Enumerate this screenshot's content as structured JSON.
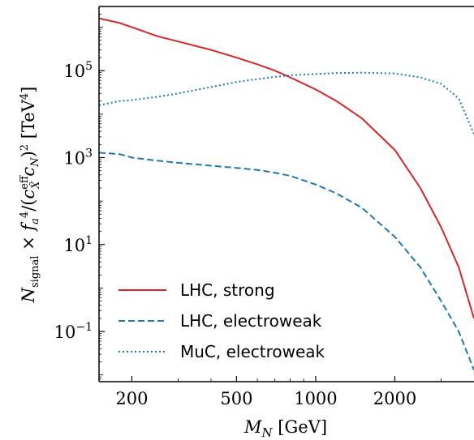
{
  "chart_data": {
    "type": "line",
    "xscale": "log",
    "yscale": "log",
    "xlim": [
      150,
      4000
    ],
    "ylim": [
      0.007,
      3000000
    ],
    "grid": false,
    "xlabel": "M_N [GeV]",
    "ylabel": "N_signal × f_a^4/(c_X^eff c_N)^2 [TeV^4]",
    "x_ticks": [
      {
        "value": 200,
        "label": "200"
      },
      {
        "value": 500,
        "label": "500"
      },
      {
        "value": 1000,
        "label": "1000"
      },
      {
        "value": 2000,
        "label": "2000"
      }
    ],
    "y_ticks": [
      {
        "value": 0.1,
        "base": "10",
        "exp": "−1"
      },
      {
        "value": 10,
        "base": "10",
        "exp": "1"
      },
      {
        "value": 1000,
        "base": "10",
        "exp": "3"
      },
      {
        "value": 100000,
        "base": "10",
        "exp": "5"
      }
    ],
    "legend_position": "bottom-left",
    "series": [
      {
        "name": "LHC, strong",
        "color": "#d62728",
        "dash": "solid",
        "x": [
          150,
          180,
          200,
          250,
          300,
          400,
          500,
          600,
          700,
          800,
          1000,
          1200,
          1500,
          2000,
          2500,
          3000,
          3500,
          4000
        ],
        "y": [
          1600000,
          1250000,
          1000000,
          620000,
          470000,
          300000,
          200000,
          140000,
          100000,
          70000,
          37000,
          20000,
          8000,
          1500,
          200,
          25,
          3,
          0.2
        ]
      },
      {
        "name": "LHC, electroweak",
        "color": "#1f77b4",
        "dash": "dashed",
        "x": [
          150,
          180,
          200,
          250,
          300,
          400,
          500,
          600,
          700,
          800,
          1000,
          1200,
          1500,
          2000,
          2500,
          3000,
          3500,
          4000
        ],
        "y": [
          1300,
          1200,
          1000,
          850,
          760,
          650,
          580,
          520,
          450,
          380,
          240,
          150,
          70,
          15,
          3,
          0.5,
          0.1,
          0.013
        ]
      },
      {
        "name": "MuC, electroweak",
        "color": "#1f77b4",
        "dash": "dotted",
        "x": [
          150,
          180,
          200,
          250,
          300,
          400,
          500,
          600,
          700,
          800,
          1000,
          1200,
          1500,
          2000,
          2500,
          3000,
          3500,
          4000
        ],
        "y": [
          16000,
          20000,
          21000,
          25000,
          30000,
          42000,
          55000,
          64000,
          72000,
          78000,
          84000,
          88000,
          90000,
          86000,
          70000,
          50000,
          23000,
          3500
        ]
      }
    ]
  }
}
